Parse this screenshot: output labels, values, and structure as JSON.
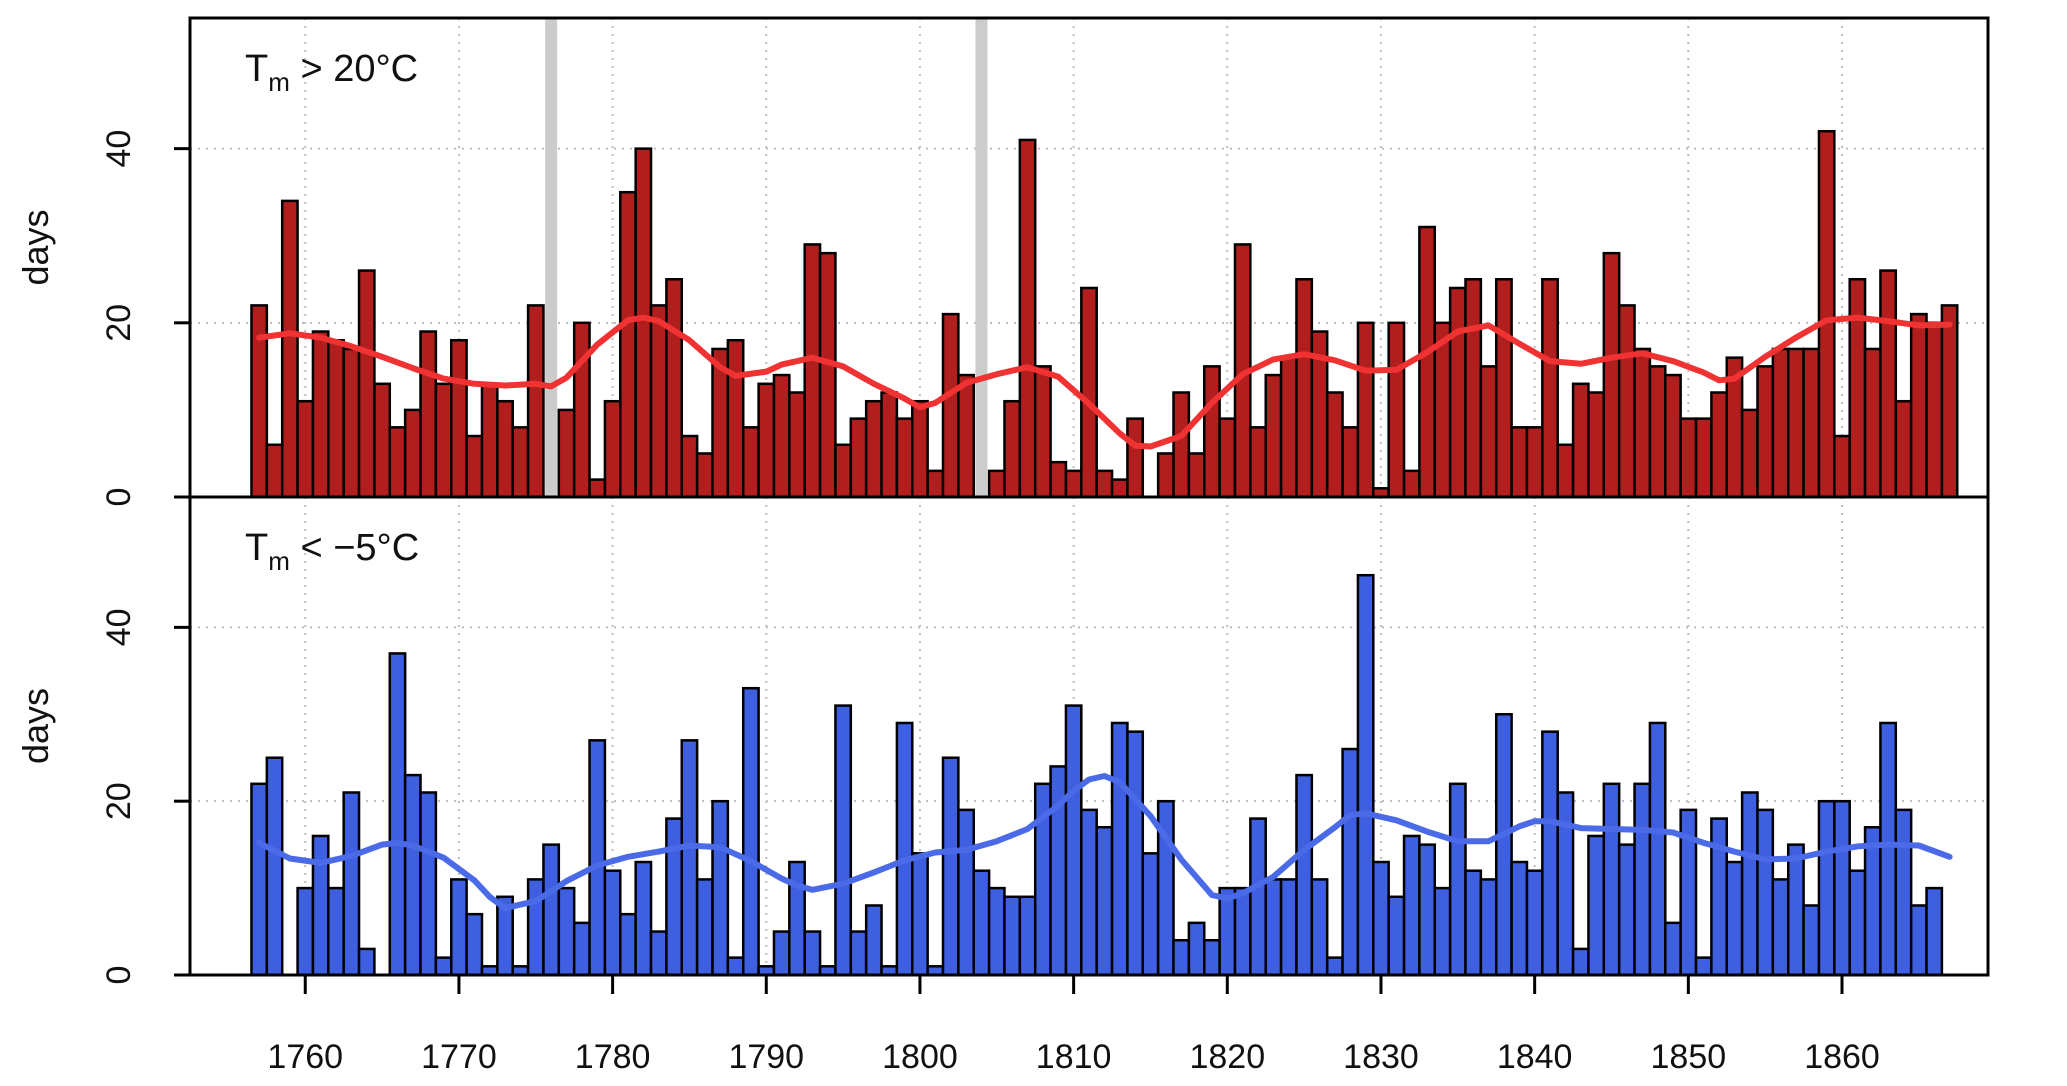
{
  "chart_data": [
    {
      "type": "bar",
      "title": "T",
      "title_sub": "m",
      "title_rest": " > 20°C",
      "ylabel": "days",
      "xlabel": "",
      "ylim": [
        0,
        55
      ],
      "yticks": [
        0,
        20,
        40
      ],
      "xlim": [
        1752.5,
        1869.5
      ],
      "xticks": [
        1760,
        1770,
        1780,
        1790,
        1800,
        1810,
        1820,
        1830,
        1840,
        1850,
        1860
      ],
      "grid": true,
      "bar_color": "#b11e1e",
      "smooth_color": "#f03232",
      "gap_marker_color": "#cccccc",
      "gap_markers": [
        1776,
        1804
      ],
      "x": [
        1757,
        1758,
        1759,
        1760,
        1761,
        1762,
        1763,
        1764,
        1765,
        1766,
        1767,
        1768,
        1769,
        1770,
        1771,
        1772,
        1773,
        1774,
        1775,
        1776,
        1777,
        1778,
        1779,
        1780,
        1781,
        1782,
        1783,
        1784,
        1785,
        1786,
        1787,
        1788,
        1789,
        1790,
        1791,
        1792,
        1793,
        1794,
        1795,
        1796,
        1797,
        1798,
        1799,
        1800,
        1801,
        1802,
        1803,
        1804,
        1805,
        1806,
        1807,
        1808,
        1809,
        1810,
        1811,
        1812,
        1813,
        1814,
        1815,
        1816,
        1817,
        1818,
        1819,
        1820,
        1821,
        1822,
        1823,
        1824,
        1825,
        1826,
        1827,
        1828,
        1829,
        1830,
        1831,
        1832,
        1833,
        1834,
        1835,
        1836,
        1837,
        1838,
        1839,
        1840,
        1841,
        1842,
        1843,
        1844,
        1845,
        1846,
        1847,
        1848,
        1849,
        1850,
        1851,
        1852,
        1853,
        1854,
        1855,
        1856,
        1857,
        1858,
        1859,
        1860,
        1861,
        1862,
        1863,
        1864,
        1865,
        1866,
        1867
      ],
      "values": [
        22,
        6,
        34,
        11,
        19,
        18,
        17,
        26,
        13,
        8,
        10,
        19,
        13,
        18,
        7,
        13,
        11,
        8,
        22,
        null,
        10,
        20,
        2,
        11,
        35,
        40,
        22,
        25,
        7,
        5,
        17,
        18,
        8,
        13,
        14,
        12,
        29,
        28,
        6,
        9,
        11,
        12,
        9,
        11,
        3,
        21,
        14,
        null,
        3,
        11,
        41,
        15,
        4,
        3,
        24,
        3,
        2,
        9,
        0,
        5,
        12,
        5,
        15,
        9,
        29,
        8,
        14,
        16,
        25,
        19,
        12,
        8,
        20,
        1,
        20,
        3,
        31,
        20,
        24,
        25,
        15,
        25,
        8,
        8,
        25,
        6,
        13,
        12,
        28,
        22,
        17,
        15,
        14,
        9,
        9,
        12,
        16,
        10,
        15,
        17,
        17,
        17,
        42,
        7,
        25,
        17,
        26,
        11,
        21,
        20,
        22
      ],
      "smooth": {
        "x": [
          1757,
          1759,
          1761,
          1763,
          1765,
          1767,
          1769,
          1771,
          1773,
          1775,
          1776,
          1777,
          1779,
          1781,
          1782,
          1783,
          1785,
          1787,
          1788,
          1790,
          1791,
          1793,
          1795,
          1797,
          1799,
          1800,
          1801,
          1803,
          1805,
          1807,
          1809,
          1811,
          1813,
          1814,
          1815,
          1817,
          1819,
          1821,
          1823,
          1825,
          1827,
          1829,
          1831,
          1833,
          1835,
          1837,
          1839,
          1841,
          1843,
          1845,
          1847,
          1849,
          1851,
          1852,
          1853,
          1855,
          1857,
          1859,
          1861,
          1863,
          1865,
          1867
        ],
        "y": [
          18.3,
          18.8,
          18.3,
          17.3,
          16.1,
          14.8,
          13.6,
          13.0,
          12.8,
          13.0,
          12.7,
          13.7,
          17.5,
          20.3,
          20.6,
          20.2,
          18.0,
          14.9,
          13.9,
          14.4,
          15.2,
          16.0,
          15.0,
          13.0,
          11.3,
          10.3,
          10.8,
          13.1,
          14.1,
          14.9,
          13.8,
          10.7,
          7.3,
          5.9,
          5.8,
          7.0,
          10.8,
          14.1,
          15.8,
          16.4,
          15.7,
          14.5,
          14.6,
          16.6,
          19.0,
          19.7,
          17.6,
          15.6,
          15.3,
          16.0,
          16.5,
          15.6,
          14.3,
          13.4,
          13.6,
          16.1,
          18.3,
          20.3,
          20.6,
          20.2,
          19.7,
          19.8
        ]
      }
    },
    {
      "type": "bar",
      "title": "T",
      "title_sub": "m",
      "title_rest": " < −5°C",
      "ylabel": "days",
      "xlabel": "",
      "ylim": [
        0,
        55
      ],
      "yticks": [
        0,
        20,
        40
      ],
      "xlim": [
        1752.5,
        1869.5
      ],
      "xticks": [
        1760,
        1770,
        1780,
        1790,
        1800,
        1810,
        1820,
        1830,
        1840,
        1850,
        1860
      ],
      "grid": true,
      "bar_color": "#3e60e0",
      "smooth_color": "#4a6ae8",
      "x": [
        1757,
        1758,
        1759,
        1760,
        1761,
        1762,
        1763,
        1764,
        1765,
        1766,
        1767,
        1768,
        1769,
        1770,
        1771,
        1772,
        1773,
        1774,
        1775,
        1776,
        1777,
        1778,
        1779,
        1780,
        1781,
        1782,
        1783,
        1784,
        1785,
        1786,
        1787,
        1788,
        1789,
        1790,
        1791,
        1792,
        1793,
        1794,
        1795,
        1796,
        1797,
        1798,
        1799,
        1800,
        1801,
        1802,
        1803,
        1804,
        1805,
        1806,
        1807,
        1808,
        1809,
        1810,
        1811,
        1812,
        1813,
        1814,
        1815,
        1816,
        1817,
        1818,
        1819,
        1820,
        1821,
        1822,
        1823,
        1824,
        1825,
        1826,
        1827,
        1828,
        1829,
        1830,
        1831,
        1832,
        1833,
        1834,
        1835,
        1836,
        1837,
        1838,
        1839,
        1840,
        1841,
        1842,
        1843,
        1844,
        1845,
        1846,
        1847,
        1848,
        1849,
        1850,
        1851,
        1852,
        1853,
        1854,
        1855,
        1856,
        1857,
        1858,
        1859,
        1860,
        1861,
        1862,
        1863,
        1864,
        1865,
        1866,
        1867
      ],
      "values": [
        22,
        25,
        0,
        10,
        16,
        10,
        21,
        3,
        0,
        37,
        23,
        21,
        2,
        11,
        7,
        1,
        9,
        1,
        11,
        15,
        10,
        6,
        27,
        12,
        7,
        13,
        5,
        18,
        27,
        11,
        20,
        2,
        33,
        1,
        5,
        13,
        5,
        1,
        31,
        5,
        8,
        1,
        29,
        14,
        1,
        25,
        19,
        12,
        10,
        9,
        9,
        22,
        24,
        31,
        19,
        17,
        29,
        28,
        14,
        20,
        4,
        6,
        4,
        10,
        10,
        18,
        11,
        11,
        23,
        11,
        2,
        26,
        46,
        13,
        9,
        16,
        15,
        10,
        22,
        12,
        11,
        30,
        13,
        12,
        28,
        21,
        3,
        16,
        22,
        15,
        22,
        29,
        6,
        19,
        2,
        18,
        13,
        21,
        19,
        11,
        15,
        8,
        20,
        20,
        12,
        17,
        29,
        19,
        8,
        10,
        0
      ],
      "smooth": {
        "x": [
          1757,
          1759,
          1761,
          1763,
          1765,
          1766,
          1767,
          1769,
          1771,
          1772,
          1773,
          1775,
          1777,
          1779,
          1781,
          1783,
          1785,
          1787,
          1789,
          1791,
          1792,
          1793,
          1795,
          1797,
          1799,
          1801,
          1803,
          1805,
          1807,
          1809,
          1810,
          1811,
          1812,
          1813,
          1815,
          1817,
          1819,
          1820,
          1821,
          1823,
          1825,
          1827,
          1828,
          1829,
          1831,
          1833,
          1835,
          1837,
          1839,
          1840,
          1841,
          1843,
          1845,
          1847,
          1849,
          1851,
          1853,
          1855,
          1857,
          1859,
          1861,
          1863,
          1865,
          1867
        ],
        "y": [
          15.2,
          13.4,
          12.9,
          13.7,
          15.0,
          15.2,
          14.9,
          13.5,
          10.9,
          9.0,
          7.7,
          8.5,
          10.8,
          12.6,
          13.6,
          14.2,
          14.9,
          14.7,
          13.1,
          11.1,
          10.3,
          9.8,
          10.5,
          11.8,
          13.2,
          14.1,
          14.4,
          15.4,
          16.8,
          19.5,
          21.2,
          22.5,
          22.9,
          22.2,
          18.3,
          13.3,
          9.2,
          8.8,
          9.4,
          11.3,
          14.4,
          17.0,
          18.4,
          18.6,
          17.8,
          16.5,
          15.4,
          15.4,
          17.1,
          17.7,
          17.7,
          16.9,
          16.8,
          16.7,
          16.4,
          15.2,
          14.2,
          13.3,
          13.4,
          14.2,
          14.8,
          15.0,
          14.9,
          13.6
        ]
      }
    }
  ]
}
